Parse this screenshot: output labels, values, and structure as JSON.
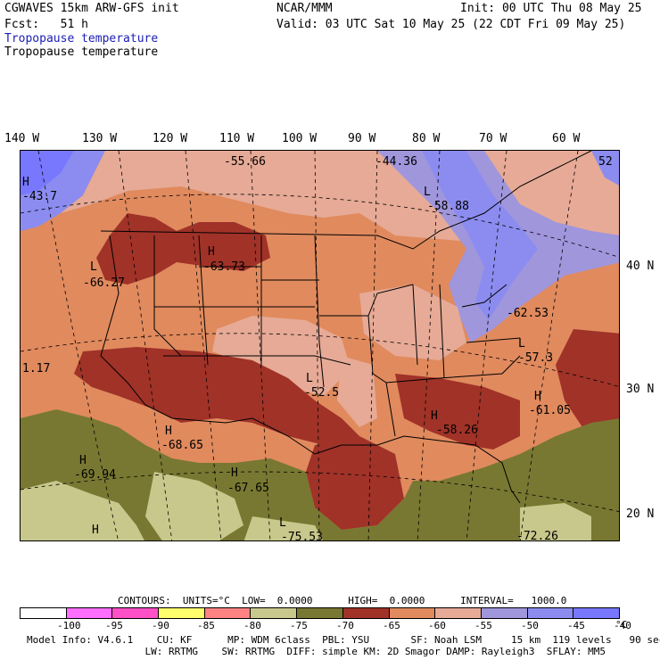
{
  "header": {
    "model": "CGWAVES 15km ARW-GFS init",
    "org": "NCAR/MMM",
    "init": "Init: 00 UTC Thu 08 May 25",
    "fcst": "Fcst:   51 h",
    "valid": "Valid: 03 UTC Sat 10 May 25 (22 CDT Fri 09 May 25)",
    "field_line1": "Tropopause temperature",
    "field_line2": "Tropopause temperature"
  },
  "longitudes": [
    "140 W",
    "130 W",
    "120 W",
    "110 W",
    "100 W",
    "90 W",
    "80 W",
    "70 W",
    "60 W"
  ],
  "latitudes": [
    "40 N",
    "30 N",
    "20 N"
  ],
  "map_labels": [
    {
      "text": "-55.66"
    },
    {
      "text": "-44.36"
    },
    {
      "text": "52"
    },
    {
      "text": "H"
    },
    {
      "text": "-43.7"
    },
    {
      "text": "L"
    },
    {
      "text": "-58.88"
    },
    {
      "text": "H"
    },
    {
      "text": "-63.73"
    },
    {
      "text": "L"
    },
    {
      "text": "-66.27"
    },
    {
      "text": "-62.53"
    },
    {
      "text": "L"
    },
    {
      "text": "-57.3"
    },
    {
      "text": "1.17"
    },
    {
      "text": "L"
    },
    {
      "text": "-52.5"
    },
    {
      "text": "H"
    },
    {
      "text": "-61.05"
    },
    {
      "text": "H"
    },
    {
      "text": "-58.26"
    },
    {
      "text": "H"
    },
    {
      "text": "-68.65"
    },
    {
      "text": "H"
    },
    {
      "text": "-69.94"
    },
    {
      "text": "H"
    },
    {
      "text": "-67.65"
    },
    {
      "text": "L"
    },
    {
      "text": "-75.53"
    },
    {
      "text": "H"
    },
    {
      "text": "-72.26"
    }
  ],
  "contours_line": "CONTOURS:  UNITS=°C  LOW=  0.0000      HIGH=  0.0000      INTERVAL=   1000.0",
  "colorbar": {
    "colors": [
      "#ffffff",
      "#ff6eff",
      "#ff50c8",
      "#ffff6e",
      "#ff8282",
      "#c8c88c",
      "#787832",
      "#a03228",
      "#e08a5e",
      "#e6aa96",
      "#a096dc",
      "#8c8cf0",
      "#7878ff"
    ],
    "ticks": [
      "-100",
      "-95",
      "-90",
      "-85",
      "-80",
      "-75",
      "-70",
      "-65",
      "-60",
      "-55",
      "-50",
      "-45",
      "-40",
      "°C"
    ]
  },
  "model_info": {
    "line1": "Model Info: V4.6.1    CU: KF      MP: WDM 6class  PBL: YSU       SF: Noah LSM     15 km  119 levels   90 sec",
    "line2": "                    LW: RRTMG    SW: RRTMG  DIFF: simple KM: 2D Smagor DAMP: Rayleigh3  SFLAY: MM5"
  }
}
